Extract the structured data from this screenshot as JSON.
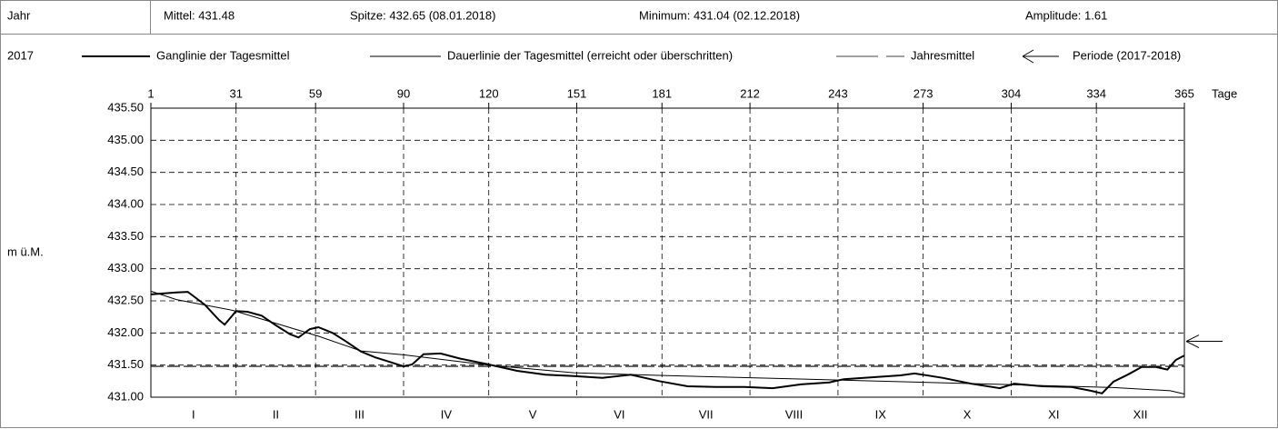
{
  "header": {
    "label": "Jahr",
    "mean": "Mittel: 431.48",
    "peak": "Spitze: 432.65 (08.01.2018)",
    "minimum": "Minimum: 431.04 (02.12.2018)",
    "amplitude": "Amplitude: 1.61"
  },
  "chart_data": {
    "type": "line",
    "year": "2017",
    "x_label": "Tage",
    "y_label": "m ü.M.",
    "xlim": [
      1,
      365
    ],
    "xticks": [
      1,
      31,
      59,
      90,
      120,
      151,
      181,
      212,
      243,
      273,
      304,
      334,
      365
    ],
    "ylim": [
      431,
      435.5
    ],
    "yticks": [
      {
        "value": 431,
        "label": "431.00"
      },
      {
        "value": 431.5,
        "label": "431.50"
      },
      {
        "value": 432,
        "label": "432.00"
      },
      {
        "value": 432.5,
        "label": "432.50"
      },
      {
        "value": 433,
        "label": "433.00"
      },
      {
        "value": 433.5,
        "label": "433.50"
      },
      {
        "value": 434,
        "label": "434.00"
      },
      {
        "value": 434.5,
        "label": "434.50"
      },
      {
        "value": 435,
        "label": "435.00"
      },
      {
        "value": 435.5,
        "label": "435.50"
      }
    ],
    "grid": true,
    "categories": [
      "I",
      "II",
      "III",
      "IV",
      "V",
      "VI",
      "VII",
      "VIII",
      "IX",
      "X",
      "XI",
      "XII"
    ],
    "series": [
      {
        "name": "Ganglinie der Tagesmittel",
        "color": "#000000",
        "width": 2,
        "x": [
          1,
          10,
          14,
          20,
          25,
          27,
          31,
          35,
          40,
          45,
          50,
          53,
          57,
          60,
          65,
          70,
          75,
          80,
          85,
          90,
          93,
          97,
          103,
          110,
          120,
          130,
          140,
          150,
          160,
          170,
          180,
          190,
          200,
          210,
          220,
          230,
          240,
          245,
          255,
          265,
          270,
          280,
          290,
          300,
          305,
          315,
          325,
          332,
          336,
          340,
          345,
          350,
          355,
          359,
          362,
          365
        ],
        "values": [
          432.6,
          432.63,
          432.64,
          432.44,
          432.2,
          432.13,
          432.34,
          432.33,
          432.27,
          432.12,
          431.98,
          431.93,
          432.06,
          432.09,
          432,
          431.86,
          431.71,
          431.62,
          431.55,
          431.48,
          431.51,
          431.67,
          431.68,
          431.6,
          431.51,
          431.41,
          431.35,
          431.33,
          431.3,
          431.35,
          431.25,
          431.17,
          431.16,
          431.16,
          431.14,
          431.2,
          431.23,
          431.28,
          431.31,
          431.34,
          431.37,
          431.3,
          431.21,
          431.14,
          431.21,
          431.17,
          431.16,
          431.1,
          431.06,
          431.24,
          431.35,
          431.47,
          431.47,
          431.43,
          431.58,
          431.65
        ]
      },
      {
        "name": "Dauerlinie der Tagesmittel (erreicht oder überschritten)",
        "color": "#000000",
        "width": 1,
        "x": [
          1,
          10,
          30,
          60,
          75,
          90,
          120,
          150,
          180,
          240,
          300,
          340,
          360,
          365
        ],
        "values": [
          432.65,
          432.52,
          432.35,
          431.95,
          431.72,
          431.66,
          431.5,
          431.38,
          431.34,
          431.27,
          431.2,
          431.15,
          431.1,
          431.05
        ]
      }
    ],
    "mean_name": "Jahresmittel",
    "mean_line": 431.48,
    "period_name": "Periode (2017-2018)",
    "period_marker": 431.87
  }
}
